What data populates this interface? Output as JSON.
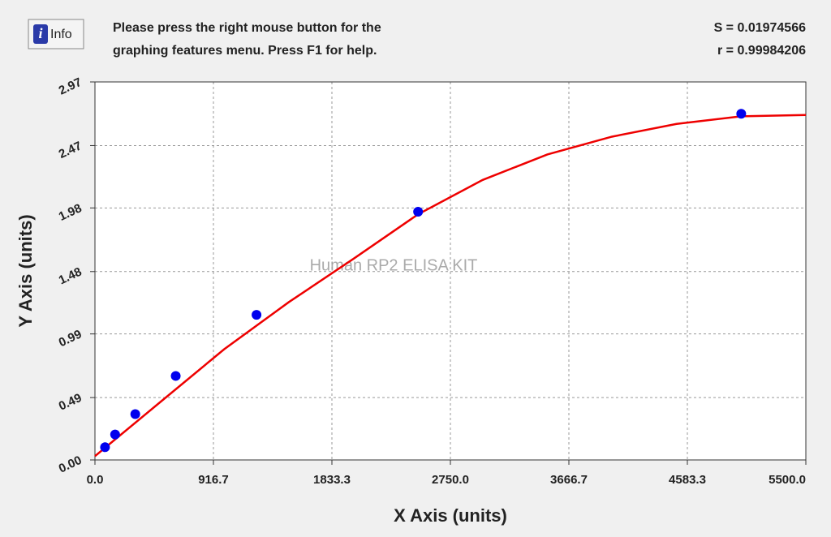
{
  "chart_data": {
    "type": "scatter",
    "info_button": "Info",
    "message": [
      "Please press the right mouse button for the",
      "graphing features menu.  Press F1 for help."
    ],
    "stats": [
      "S = 0.01974566",
      "r = 0.99984206"
    ],
    "watermark": "Human RP2 ELISA KIT",
    "x_label": "X Axis (units)",
    "y_label": "Y Axis (units)",
    "xlim": [
      0,
      5500
    ],
    "ylim": [
      0,
      2.97
    ],
    "xticks": [
      {
        "value": 0,
        "label": "0.0"
      },
      916.7,
      1833.3,
      {
        "value": 2750,
        "label": "2750.0"
      },
      3666.7,
      4583.3,
      {
        "value": 5500,
        "label": "5500.0"
      }
    ],
    "yticks": [
      {
        "value": 0,
        "label": "0.00"
      },
      0.49,
      0.99,
      1.48,
      1.98,
      2.47,
      2.97
    ],
    "grid": true,
    "points": {
      "color": "#0000ee",
      "x": [
        78,
        156,
        312,
        625,
        1250,
        2500,
        5000
      ],
      "values": [
        0.1,
        0.2,
        0.36,
        0.66,
        1.14,
        1.95,
        2.72
      ]
    },
    "fit": {
      "color": "#ee0000",
      "x": [
        0,
        500,
        1000,
        1500,
        2000,
        2500,
        3000,
        3500,
        4000,
        4500,
        5000,
        5500
      ],
      "values": [
        0.03,
        0.45,
        0.87,
        1.24,
        1.58,
        1.93,
        2.2,
        2.4,
        2.54,
        2.64,
        2.7,
        2.71
      ]
    }
  }
}
